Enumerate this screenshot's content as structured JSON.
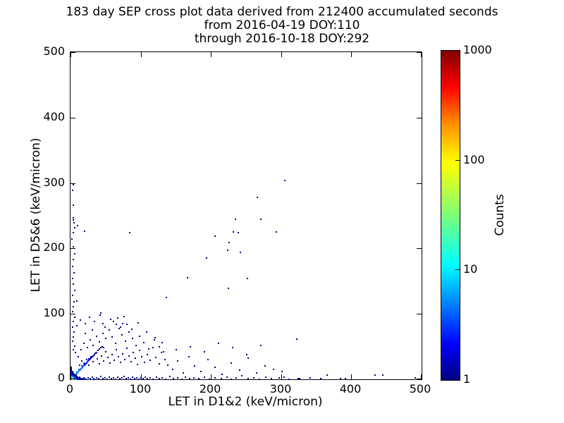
{
  "chart_data": {
    "type": "scatter",
    "title_lines": [
      "183 day SEP cross plot data derived from 212400 accumulated seconds",
      "from 2016-04-19 DOY:110",
      "through 2016-10-18 DOY:292"
    ],
    "xlabel": "LET in D1&2 (keV/micron)",
    "ylabel": "LET in D5&6 (keV/micron)",
    "xlim": [
      0,
      500
    ],
    "ylim": [
      0,
      500
    ],
    "xticks": [
      0,
      100,
      200,
      300,
      400,
      500
    ],
    "yticks": [
      0,
      100,
      200,
      300,
      400,
      500
    ],
    "grid": false,
    "background_color": "#ffffff",
    "axis_color": "#000000",
    "colorbar": {
      "label": "Counts",
      "scale": "log",
      "min": 1,
      "max": 1000,
      "ticks": [
        1,
        10,
        100,
        1000
      ],
      "colormap": "jet",
      "top_color": "#800000",
      "bottom_color": "#000080"
    },
    "point_value_meaning": "counts per bin (log10 scale onto jet colormap)",
    "points": [
      [
        304,
        304
      ],
      [
        265,
        278
      ],
      [
        234,
        245
      ],
      [
        270,
        245
      ],
      [
        231,
        225
      ],
      [
        238,
        224
      ],
      [
        292,
        225
      ],
      [
        205,
        219
      ],
      [
        225,
        209
      ],
      [
        223,
        197
      ],
      [
        241,
        194
      ],
      [
        193,
        185
      ],
      [
        166,
        155
      ],
      [
        251,
        154
      ],
      [
        224,
        139
      ],
      [
        136,
        125
      ],
      [
        8,
        120
      ],
      [
        42,
        101
      ],
      [
        66,
        94
      ],
      [
        73,
        85
      ],
      [
        79,
        84
      ],
      [
        321,
        61
      ],
      [
        300,
        12
      ],
      [
        303,
        3
      ],
      [
        364,
        6
      ],
      [
        384,
        1
      ],
      [
        391,
        1
      ],
      [
        433,
        6
      ],
      [
        444,
        7
      ],
      [
        490,
        2
      ],
      [
        323,
        1
      ],
      [
        3,
        297
      ],
      [
        2,
        289
      ],
      [
        3,
        266
      ],
      [
        3,
        247
      ],
      [
        3,
        244
      ],
      [
        4,
        239
      ],
      [
        9,
        235
      ],
      [
        5,
        232
      ],
      [
        19,
        226
      ],
      [
        3,
        224
      ],
      [
        1,
        214
      ],
      [
        3,
        203
      ],
      [
        83,
        224
      ],
      [
        5,
        192
      ],
      [
        3,
        183
      ],
      [
        2,
        172
      ],
      [
        4,
        163
      ],
      [
        2,
        154
      ],
      [
        3,
        146
      ],
      [
        5,
        136
      ],
      [
        2,
        128
      ],
      [
        4,
        119
      ],
      [
        3,
        111
      ],
      [
        2,
        103
      ],
      [
        5,
        95
      ],
      [
        3,
        88
      ],
      [
        2,
        80
      ],
      [
        4,
        72
      ],
      [
        3,
        65
      ],
      [
        2,
        58
      ],
      [
        5,
        51
      ],
      [
        3,
        45
      ],
      [
        6,
        41
      ],
      [
        6,
        2
      ],
      [
        9,
        1
      ],
      [
        12,
        3
      ],
      [
        15,
        1
      ],
      [
        18,
        2
      ],
      [
        21,
        0
      ],
      [
        24,
        2
      ],
      [
        27,
        1
      ],
      [
        30,
        3
      ],
      [
        33,
        0
      ],
      [
        36,
        2
      ],
      [
        39,
        1
      ],
      [
        42,
        4
      ],
      [
        45,
        1
      ],
      [
        48,
        2
      ],
      [
        51,
        0
      ],
      [
        54,
        3
      ],
      [
        57,
        1
      ],
      [
        60,
        2
      ],
      [
        63,
        0
      ],
      [
        66,
        3
      ],
      [
        69,
        1
      ],
      [
        72,
        2
      ],
      [
        75,
        4
      ],
      [
        78,
        1
      ],
      [
        81,
        2
      ],
      [
        84,
        0
      ],
      [
        87,
        3
      ],
      [
        90,
        1
      ],
      [
        93,
        2
      ],
      [
        96,
        0
      ],
      [
        99,
        2
      ],
      [
        102,
        1
      ],
      [
        105,
        3
      ],
      [
        108,
        1
      ],
      [
        8,
        0,
        8
      ],
      [
        14,
        0,
        6
      ],
      [
        20,
        1,
        5
      ],
      [
        26,
        0,
        4
      ],
      [
        32,
        1,
        3
      ],
      [
        112,
        2
      ],
      [
        116,
        0
      ],
      [
        121,
        3
      ],
      [
        125,
        1
      ],
      [
        130,
        2
      ],
      [
        135,
        0
      ],
      [
        141,
        4
      ],
      [
        146,
        1
      ],
      [
        152,
        2
      ],
      [
        158,
        0
      ],
      [
        163,
        3
      ],
      [
        169,
        1
      ],
      [
        175,
        2
      ],
      [
        182,
        1
      ],
      [
        190,
        3
      ],
      [
        197,
        0
      ],
      [
        205,
        2
      ],
      [
        214,
        1
      ],
      [
        222,
        3
      ],
      [
        228,
        0
      ],
      [
        235,
        2
      ],
      [
        243,
        5
      ],
      [
        252,
        1
      ],
      [
        260,
        2
      ],
      [
        268,
        0
      ],
      [
        277,
        3
      ],
      [
        285,
        1
      ],
      [
        296,
        2
      ],
      [
        310,
        0
      ],
      [
        325,
        1
      ],
      [
        340,
        2
      ],
      [
        355,
        1
      ],
      [
        3,
        4,
        6
      ],
      [
        4,
        5,
        8
      ],
      [
        5,
        6,
        6
      ],
      [
        6,
        7,
        10
      ],
      [
        7,
        8,
        6
      ],
      [
        8,
        9,
        4
      ],
      [
        9,
        10,
        6
      ],
      [
        10,
        12,
        4
      ],
      [
        11,
        13,
        8
      ],
      [
        12,
        14,
        4
      ],
      [
        13,
        15,
        3
      ],
      [
        14,
        16,
        6
      ],
      [
        15,
        17,
        3
      ],
      [
        16,
        18,
        4
      ],
      [
        17,
        20,
        3
      ],
      [
        18,
        21,
        4
      ],
      [
        19,
        22,
        3
      ],
      [
        20,
        23,
        2
      ],
      [
        21,
        24,
        4
      ],
      [
        22,
        25,
        2
      ],
      [
        23,
        27,
        3
      ],
      [
        24,
        28,
        2
      ],
      [
        25,
        29,
        2
      ],
      [
        26,
        30,
        3
      ],
      [
        27,
        31,
        1
      ],
      [
        28,
        32,
        2
      ],
      [
        29,
        33,
        2
      ],
      [
        30,
        35,
        2
      ],
      [
        31,
        36,
        1
      ],
      [
        32,
        37,
        2
      ],
      [
        33,
        38,
        1
      ],
      [
        35,
        40,
        1
      ],
      [
        36,
        41,
        2
      ],
      [
        38,
        44,
        1
      ],
      [
        40,
        46,
        1
      ],
      [
        42,
        48,
        1
      ],
      [
        44,
        50,
        1
      ],
      [
        46,
        48,
        1
      ],
      [
        25,
        31,
        2
      ],
      [
        19,
        25,
        3
      ],
      [
        15,
        20,
        4
      ],
      [
        11,
        15,
        5
      ],
      [
        8,
        11,
        6
      ],
      [
        6,
        8,
        8
      ],
      [
        0,
        0,
        700
      ],
      [
        1,
        0,
        300
      ],
      [
        0,
        1,
        300
      ],
      [
        1,
        1,
        150
      ],
      [
        2,
        0,
        120
      ],
      [
        0,
        2,
        120
      ],
      [
        2,
        1,
        60
      ],
      [
        1,
        2,
        60
      ],
      [
        3,
        0,
        40
      ],
      [
        0,
        3,
        40
      ],
      [
        2,
        2,
        30
      ],
      [
        3,
        1,
        25
      ],
      [
        1,
        3,
        25
      ],
      [
        4,
        0,
        18
      ],
      [
        0,
        4,
        18
      ],
      [
        3,
        2,
        15
      ],
      [
        2,
        3,
        15
      ],
      [
        4,
        1,
        12
      ],
      [
        1,
        4,
        12
      ],
      [
        0,
        5,
        10
      ],
      [
        5,
        0,
        10
      ],
      [
        3,
        3,
        10
      ],
      [
        5,
        1,
        8
      ],
      [
        1,
        5,
        8
      ],
      [
        4,
        2,
        8
      ],
      [
        2,
        4,
        8
      ],
      [
        0,
        6,
        7
      ],
      [
        6,
        0,
        7
      ],
      [
        4,
        3,
        6
      ],
      [
        3,
        4,
        6
      ],
      [
        6,
        1,
        5
      ],
      [
        1,
        6,
        5
      ],
      [
        5,
        2,
        5
      ],
      [
        2,
        5,
        5
      ],
      [
        0,
        7,
        5
      ],
      [
        7,
        0,
        5
      ],
      [
        5,
        3,
        4
      ],
      [
        3,
        5,
        4
      ],
      [
        7,
        1,
        4
      ],
      [
        1,
        7,
        4
      ],
      [
        0,
        8,
        4
      ],
      [
        8,
        0,
        4
      ],
      [
        6,
        2,
        4
      ],
      [
        2,
        6,
        4
      ],
      [
        4,
        4,
        4
      ],
      [
        8,
        1,
        3
      ],
      [
        1,
        8,
        3
      ],
      [
        0,
        9,
        3
      ],
      [
        9,
        0,
        3
      ],
      [
        6,
        3,
        3
      ],
      [
        3,
        6,
        3
      ],
      [
        5,
        4,
        3
      ],
      [
        4,
        5,
        3
      ],
      [
        7,
        2,
        3
      ],
      [
        2,
        7,
        3
      ],
      [
        0,
        10,
        3
      ],
      [
        10,
        0,
        3
      ],
      [
        9,
        1,
        2
      ],
      [
        1,
        9,
        2
      ],
      [
        0,
        11,
        2
      ],
      [
        11,
        0,
        2
      ],
      [
        8,
        2,
        2
      ],
      [
        2,
        8,
        2
      ],
      [
        7,
        3,
        2
      ],
      [
        3,
        7,
        2
      ],
      [
        6,
        4,
        2
      ],
      [
        4,
        6,
        2
      ],
      [
        5,
        5,
        2
      ],
      [
        10,
        1,
        2
      ],
      [
        1,
        10,
        2
      ],
      [
        0,
        12,
        2
      ],
      [
        12,
        0,
        2
      ],
      [
        2,
        9,
        2
      ],
      [
        9,
        2,
        2
      ],
      [
        0,
        13,
        2
      ],
      [
        13,
        0,
        2
      ],
      [
        0,
        14,
        1
      ],
      [
        14,
        0,
        1
      ],
      [
        3,
        8,
        1
      ],
      [
        8,
        3,
        1
      ],
      [
        4,
        7,
        1
      ],
      [
        7,
        4,
        1
      ],
      [
        5,
        6,
        1
      ],
      [
        6,
        5,
        1
      ],
      [
        2,
        10,
        1
      ],
      [
        10,
        2,
        1
      ],
      [
        1,
        11,
        1
      ],
      [
        11,
        1,
        1
      ],
      [
        12,
        1,
        1
      ],
      [
        1,
        12,
        1
      ],
      [
        13,
        1,
        1
      ],
      [
        2,
        11,
        1
      ],
      [
        3,
        9,
        1
      ],
      [
        9,
        3,
        1
      ],
      [
        4,
        8,
        1
      ],
      [
        8,
        4,
        1
      ],
      [
        5,
        7,
        1
      ],
      [
        7,
        5,
        1
      ],
      [
        6,
        6,
        1
      ],
      [
        2,
        12,
        1
      ],
      [
        14,
        1,
        1
      ],
      [
        15,
        0,
        2
      ],
      [
        16,
        0,
        1
      ],
      [
        17,
        0,
        1
      ],
      [
        18,
        0,
        2
      ],
      [
        0,
        15,
        1
      ],
      [
        0,
        16,
        1
      ],
      [
        0,
        17,
        1
      ],
      [
        0,
        18,
        1
      ],
      [
        12,
        22
      ],
      [
        15,
        28
      ],
      [
        18,
        24
      ],
      [
        22,
        30
      ],
      [
        25,
        22
      ],
      [
        28,
        35
      ],
      [
        31,
        27
      ],
      [
        34,
        40
      ],
      [
        37,
        31
      ],
      [
        40,
        24
      ],
      [
        43,
        36
      ],
      [
        46,
        28
      ],
      [
        49,
        42
      ],
      [
        52,
        33
      ],
      [
        55,
        25
      ],
      [
        58,
        38
      ],
      [
        61,
        29
      ],
      [
        64,
        45
      ],
      [
        67,
        34
      ],
      [
        70,
        26
      ],
      [
        73,
        39
      ],
      [
        76,
        30
      ],
      [
        79,
        47
      ],
      [
        82,
        36
      ],
      [
        85,
        27
      ],
      [
        88,
        41
      ],
      [
        91,
        32
      ],
      [
        94,
        23
      ],
      [
        97,
        44
      ],
      [
        100,
        34
      ],
      [
        104,
        26
      ],
      [
        108,
        38
      ],
      [
        112,
        29
      ],
      [
        116,
        48
      ],
      [
        120,
        33
      ],
      [
        125,
        24
      ],
      [
        129,
        41
      ],
      [
        134,
        30
      ],
      [
        138,
        22
      ],
      [
        10,
        35
      ],
      [
        14,
        45
      ],
      [
        18,
        55
      ],
      [
        23,
        48
      ],
      [
        27,
        60
      ],
      [
        31,
        52
      ],
      [
        36,
        66
      ],
      [
        40,
        57
      ],
      [
        45,
        70
      ],
      [
        49,
        62
      ],
      [
        54,
        75
      ],
      [
        58,
        65
      ],
      [
        63,
        55
      ],
      [
        68,
        78
      ],
      [
        72,
        68
      ],
      [
        77,
        58
      ],
      [
        82,
        72
      ],
      [
        87,
        62
      ],
      [
        92,
        52
      ],
      [
        97,
        66
      ],
      [
        103,
        56
      ],
      [
        110,
        46
      ],
      [
        118,
        60
      ],
      [
        126,
        50
      ],
      [
        132,
        42
      ],
      [
        8,
        82
      ],
      [
        13,
        90
      ],
      [
        20,
        85
      ],
      [
        26,
        95
      ],
      [
        33,
        88
      ],
      [
        41,
        98
      ],
      [
        48,
        80
      ],
      [
        56,
        92
      ],
      [
        64,
        84
      ],
      [
        75,
        96
      ],
      [
        86,
        76
      ],
      [
        95,
        86
      ],
      [
        107,
        72
      ],
      [
        119,
        64
      ],
      [
        130,
        56
      ],
      [
        20,
        70
      ],
      [
        30,
        75
      ],
      [
        45,
        85
      ],
      [
        60,
        88
      ],
      [
        70,
        80
      ],
      [
        145,
        15
      ],
      [
        152,
        28
      ],
      [
        160,
        10
      ],
      [
        168,
        35
      ],
      [
        176,
        20
      ],
      [
        185,
        12
      ],
      [
        195,
        30
      ],
      [
        205,
        18
      ],
      [
        215,
        8
      ],
      [
        228,
        25
      ],
      [
        240,
        14
      ],
      [
        252,
        32
      ],
      [
        264,
        10
      ],
      [
        276,
        20
      ],
      [
        288,
        15
      ],
      [
        150,
        45
      ],
      [
        170,
        50
      ],
      [
        190,
        42
      ],
      [
        210,
        55
      ],
      [
        230,
        48
      ],
      [
        250,
        38
      ],
      [
        270,
        52
      ]
    ]
  }
}
